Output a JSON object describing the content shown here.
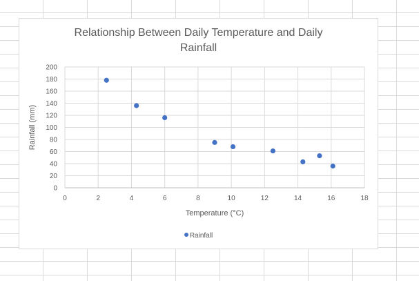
{
  "chart_data": {
    "type": "scatter",
    "title_lines": [
      "Relationship Between Daily Temperature and Daily",
      "Rainfall"
    ],
    "xlabel": "Temperature (°C)",
    "ylabel": "Rainfall (mm)",
    "xlim": [
      0,
      18
    ],
    "ylim": [
      0,
      200
    ],
    "x_ticks": [
      0,
      2,
      4,
      6,
      8,
      10,
      12,
      14,
      16,
      18
    ],
    "y_ticks": [
      0,
      20,
      40,
      60,
      80,
      100,
      120,
      140,
      160,
      180,
      200
    ],
    "grid": true,
    "legend_position": "bottom",
    "series": [
      {
        "name": "Rainfall",
        "color": "#4472c4",
        "points": [
          {
            "x": 2.5,
            "y": 178
          },
          {
            "x": 4.3,
            "y": 136
          },
          {
            "x": 6.0,
            "y": 116
          },
          {
            "x": 9.0,
            "y": 75
          },
          {
            "x": 10.1,
            "y": 68
          },
          {
            "x": 12.5,
            "y": 61
          },
          {
            "x": 14.3,
            "y": 43
          },
          {
            "x": 15.3,
            "y": 53
          },
          {
            "x": 16.1,
            "y": 36
          }
        ]
      }
    ]
  }
}
